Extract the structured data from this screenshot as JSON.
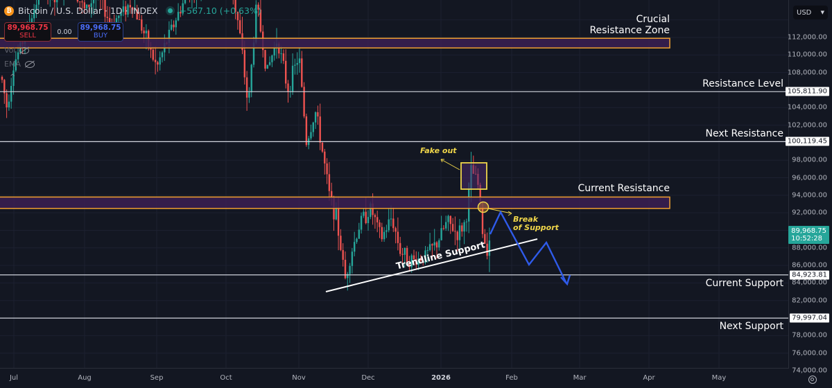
{
  "header": {
    "coin_glyph": "₿",
    "symbol_title": "Bitcoin / U.S. Dollar · 1D · INDEX",
    "change": "+567.10 (+0.63%)"
  },
  "trade": {
    "sell_price": "89,968.75",
    "sell_label": "SELL",
    "spread": "0.00",
    "buy_price": "89,968.75",
    "buy_label": "BUY"
  },
  "indicators": [
    {
      "label": "Vol",
      "icon": "eye-hidden-icon"
    },
    {
      "label": "EMA",
      "icon": "eye-hidden-icon"
    }
  ],
  "axis": {
    "currency": "USD",
    "ticks": [
      "112,000.00",
      "110,000.00",
      "108,000.00",
      "104,000.00",
      "102,000.00",
      "98,000.00",
      "96,000.00",
      "94,000.00",
      "92,000.00",
      "88,000.00",
      "86,000.00",
      "84,000.00",
      "82,000.00",
      "78,000.00",
      "76,000.00",
      "74,000.00"
    ],
    "level_labels": {
      "resistance": "105,811.90",
      "next_resistance": "100,119.45",
      "current_support": "84,923.81",
      "next_support": "79,997.04"
    },
    "current_price": "89,968.75",
    "countdown": "10:52:28"
  },
  "xaxis": {
    "months": [
      "Jul",
      "Aug",
      "Sep",
      "Oct",
      "Nov",
      "Dec",
      "2026",
      "Feb",
      "Mar",
      "Apr",
      "May"
    ]
  },
  "labels": {
    "crucial_zone_1": "Crucial",
    "crucial_zone_2": "Resistance Zone",
    "resistance_level": "Resistance Level",
    "next_resistance": "Next Resistance",
    "current_resistance": "Current Resistance",
    "current_support": "Current Support",
    "next_support": "Next Support",
    "trendline": "Trendline Support",
    "fake_out": "Fake out",
    "break_1": "Break",
    "break_2": "of Support"
  },
  "colors": {
    "background": "#131722",
    "bull": "#26a69a",
    "bear": "#ef5350",
    "zone_fill": "#3b1f52",
    "zone_border": "#f0a030",
    "level_line": "#d1d4dc",
    "projection": "#2f5bea",
    "annotation": "#f0d64a"
  },
  "chart_data": {
    "type": "candlestick",
    "title": "Bitcoin / U.S. Dollar · 1D · INDEX",
    "xlabel": "",
    "ylabel": "USD",
    "ylim": [
      74000,
      114000
    ],
    "x_ticks": [
      "Jul",
      "Aug",
      "Sep",
      "Oct",
      "Nov",
      "Dec",
      "2026",
      "Feb",
      "Mar",
      "Apr",
      "May"
    ],
    "last_price": 89968.75,
    "change": 567.1,
    "change_pct": 0.63,
    "horizontal_levels": [
      {
        "name": "Resistance Level",
        "value": 105811.9
      },
      {
        "name": "Next Resistance",
        "value": 100119.45
      },
      {
        "name": "Current Support",
        "value": 84923.81
      },
      {
        "name": "Next Support",
        "value": 79997.04
      }
    ],
    "zones": [
      {
        "name": "Crucial Resistance Zone",
        "low": 110800,
        "high": 111900
      },
      {
        "name": "Current Resistance",
        "low": 92500,
        "high": 93800
      }
    ],
    "trendline": {
      "name": "Trendline Support",
      "from": {
        "date": "mid-Nov",
        "price": 83000
      },
      "to": {
        "date": "early-Feb",
        "price": 89000
      }
    },
    "annotations": [
      "Fake out (box ~94,900–98,000, mid-Jan)",
      "Break of Support (~92,600, mid-Jan)"
    ],
    "projection_path": [
      {
        "date": "mid-Jan",
        "price": 89000
      },
      {
        "date": "late-Jan",
        "price": 91800
      },
      {
        "date": "early-Feb",
        "price": 86000
      },
      {
        "date": "mid-Feb",
        "price": 88700
      },
      {
        "date": "late-Feb",
        "price": 83700
      }
    ],
    "price_path_approx": [
      {
        "date": "Jul",
        "close": 107500
      },
      {
        "date": "Jul-mid",
        "close": 117000
      },
      {
        "date": "Aug",
        "close": 114000
      },
      {
        "date": "Aug-mid",
        "close": 116000
      },
      {
        "date": "Sep",
        "close": 109000
      },
      {
        "date": "Sep-mid",
        "close": 115000
      },
      {
        "date": "Oct",
        "close": 120000
      },
      {
        "date": "Oct-mid",
        "close": 108000
      },
      {
        "date": "Oct-end",
        "close": 110000
      },
      {
        "date": "Nov",
        "close": 103000
      },
      {
        "date": "Nov-mid",
        "close": 94000
      },
      {
        "date": "Nov-21",
        "close": 84500
      },
      {
        "date": "Dec",
        "close": 91000
      },
      {
        "date": "Dec-mid",
        "close": 86500
      },
      {
        "date": "2026",
        "close": 89000
      },
      {
        "date": "Jan-14",
        "close": 96500
      },
      {
        "date": "Jan-20",
        "close": 88000
      },
      {
        "date": "Jan-22",
        "close": 89968.75
      }
    ]
  }
}
